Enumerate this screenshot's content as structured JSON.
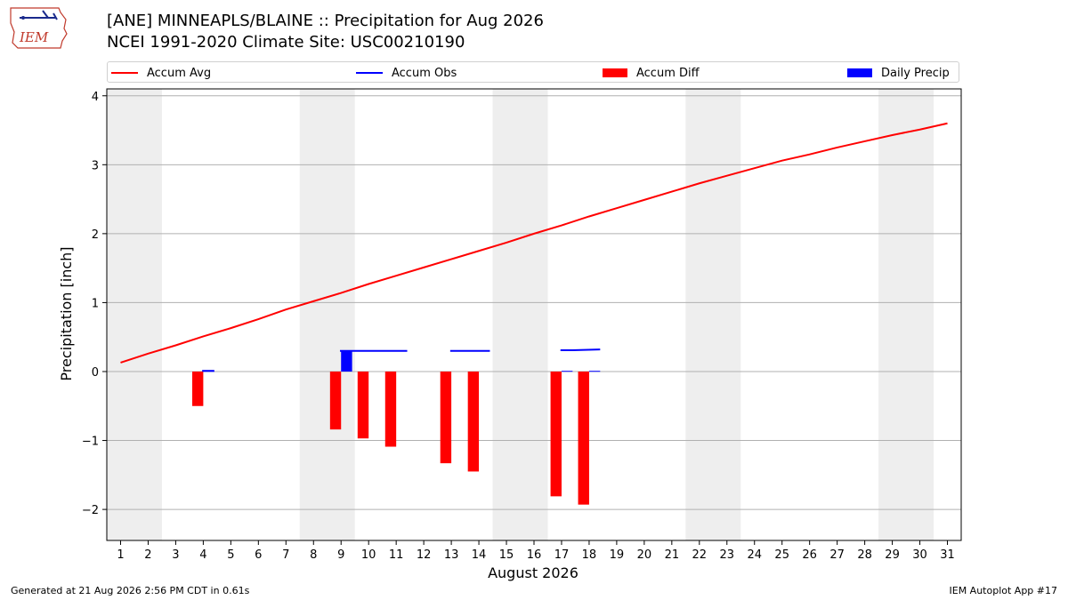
{
  "header": {
    "title_line1": "[ANE] MINNEAPLS/BLAINE :: Precipitation for Aug 2026",
    "title_line2": "NCEI 1991-2020 Climate Site: USC00210190"
  },
  "logo": {
    "text": "IEM",
    "icon": "iem-iowa-logo"
  },
  "footer": {
    "left": "Generated at 21 Aug 2026 2:56 PM CDT in 0.61s",
    "right": "IEM Autoplot App #17"
  },
  "colors": {
    "accum_avg": "#ff0000",
    "accum_obs": "#0000ff",
    "accum_diff": "#ff0000",
    "daily_precip": "#0000ff",
    "weekend_shade": "#eeeeee",
    "grid": "#b0b0b0"
  },
  "chart_data": {
    "type": "bar",
    "xlabel": "August 2026",
    "ylabel": "Precipitation [inch]",
    "xlim": [
      0.5,
      31.5
    ],
    "ylim": [
      -2.45,
      4.1
    ],
    "yticks": [
      -2,
      -1,
      0,
      1,
      2,
      3,
      4
    ],
    "ytick_labels": [
      "−2",
      "−1",
      "0",
      "1",
      "2",
      "3",
      "4"
    ],
    "days": [
      1,
      2,
      3,
      4,
      5,
      6,
      7,
      8,
      9,
      10,
      11,
      12,
      13,
      14,
      15,
      16,
      17,
      18,
      19,
      20,
      21,
      22,
      23,
      24,
      25,
      26,
      27,
      28,
      29,
      30,
      31
    ],
    "grid": true,
    "legend_position": "top",
    "shaded_weekends": [
      [
        1,
        2
      ],
      [
        8,
        9
      ],
      [
        15,
        16
      ],
      [
        22,
        23
      ],
      [
        29,
        30
      ]
    ],
    "series": [
      {
        "name": "Accum Avg",
        "kind": "line",
        "x": [
          1,
          2,
          3,
          4,
          5,
          6,
          7,
          8,
          9,
          10,
          11,
          12,
          13,
          14,
          15,
          16,
          17,
          18,
          19,
          20,
          21,
          22,
          23,
          24,
          25,
          26,
          27,
          28,
          29,
          30,
          31
        ],
        "values": [
          0.13,
          0.26,
          0.38,
          0.51,
          0.63,
          0.76,
          0.9,
          1.02,
          1.14,
          1.27,
          1.39,
          1.51,
          1.63,
          1.75,
          1.87,
          2.0,
          2.12,
          2.25,
          2.37,
          2.49,
          2.61,
          2.73,
          2.84,
          2.95,
          3.06,
          3.15,
          3.25,
          3.34,
          3.43,
          3.51,
          3.6
        ]
      },
      {
        "name": "Accum Obs",
        "kind": "step-segments",
        "x": [
          4,
          9,
          10,
          11,
          13,
          14,
          17,
          18
        ],
        "values": [
          0.01,
          0.3,
          0.3,
          0.3,
          0.3,
          0.3,
          0.31,
          0.32
        ]
      },
      {
        "name": "Accum Diff",
        "kind": "bar",
        "x": [
          4,
          9,
          10,
          11,
          13,
          14,
          17,
          18
        ],
        "values": [
          -0.5,
          -0.84,
          -0.97,
          -1.09,
          -1.33,
          -1.45,
          -1.81,
          -1.93
        ]
      },
      {
        "name": "Daily Precip",
        "kind": "bar",
        "x": [
          4,
          9,
          17,
          18
        ],
        "values": [
          0.01,
          0.29,
          0.01,
          0.01
        ]
      }
    ]
  }
}
